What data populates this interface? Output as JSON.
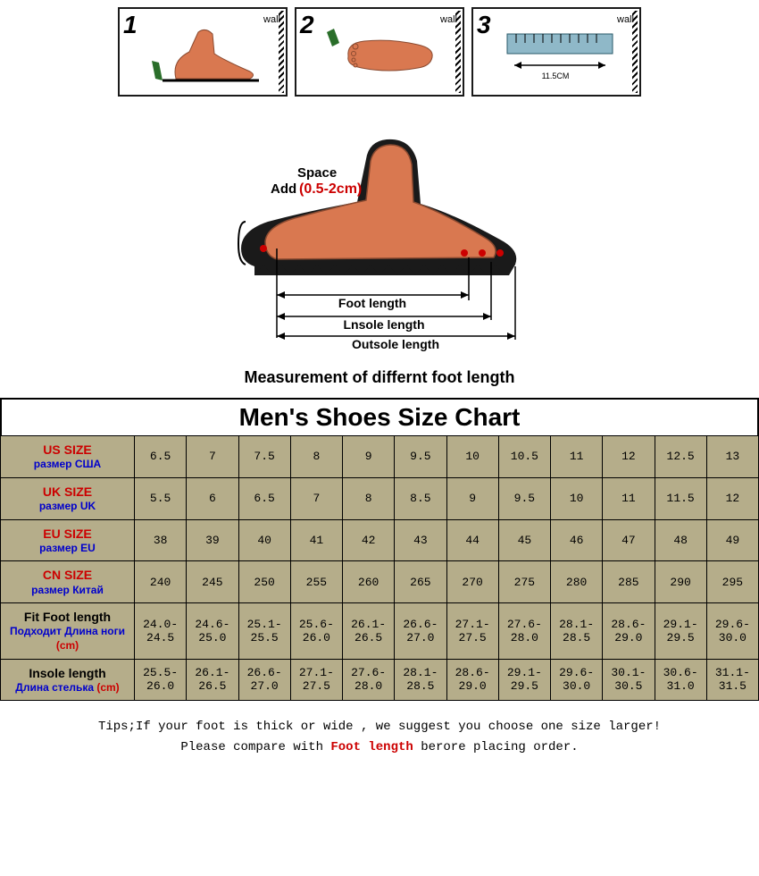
{
  "steps": [
    {
      "num": "1",
      "wall": "wall"
    },
    {
      "num": "2",
      "wall": "wall"
    },
    {
      "num": "3",
      "wall": "wall",
      "measure": "11.5CM"
    }
  ],
  "diagram": {
    "space_label": "Space",
    "add_label": "Add",
    "add_range": "(0.5-2cm)",
    "foot_length": "Foot length",
    "insole_length": "Lnsole length",
    "outsole_length": "Outsole length",
    "colors": {
      "foot": "#d97850",
      "shoe": "#1a1a1a",
      "arrow": "#1a1a1a",
      "add_text": "#cc0000"
    }
  },
  "caption": "Measurement of differnt foot length",
  "chart": {
    "title": "Men's Shoes Size Chart",
    "bg": "#b5ad8a",
    "rows": [
      {
        "en": "US SIZE",
        "ru": "размер США",
        "style": "red",
        "values": [
          "6.5",
          "7",
          "7.5",
          "8",
          "9",
          "9.5",
          "10",
          "10.5",
          "11",
          "12",
          "12.5",
          "13"
        ]
      },
      {
        "en": "UK SIZE",
        "ru": "размер UK",
        "style": "red",
        "values": [
          "5.5",
          "6",
          "6.5",
          "7",
          "8",
          "8.5",
          "9",
          "9.5",
          "10",
          "11",
          "11.5",
          "12"
        ]
      },
      {
        "en": "EU SIZE",
        "ru": "размер EU",
        "style": "red",
        "values": [
          "38",
          "39",
          "40",
          "41",
          "42",
          "43",
          "44",
          "45",
          "46",
          "47",
          "48",
          "49"
        ]
      },
      {
        "en": "CN SIZE",
        "ru": "размер Китай",
        "style": "red",
        "values": [
          "240",
          "245",
          "250",
          "255",
          "260",
          "265",
          "270",
          "275",
          "280",
          "285",
          "290",
          "295"
        ]
      },
      {
        "en": "Fit Foot length",
        "ru": "Подходит Длина ноги",
        "unit": "(cm)",
        "style": "alt",
        "values": [
          "24.0-24.5",
          "24.6-25.0",
          "25.1-25.5",
          "25.6-26.0",
          "26.1-26.5",
          "26.6-27.0",
          "27.1-27.5",
          "27.6-28.0",
          "28.1-28.5",
          "28.6-29.0",
          "29.1-29.5",
          "29.6-30.0"
        ]
      },
      {
        "en": "Insole length",
        "ru": "Длина стелька",
        "unit": "(cm)",
        "style": "alt",
        "values": [
          "25.5-26.0",
          "26.1-26.5",
          "26.6-27.0",
          "27.1-27.5",
          "27.6-28.0",
          "28.1-28.5",
          "28.6-29.0",
          "29.1-29.5",
          "29.6-30.0",
          "30.1-30.5",
          "30.6-31.0",
          "31.1-31.5"
        ]
      }
    ]
  },
  "tips": {
    "line1a": "Tips;If your foot is thick or wide , we suggest you choose one size larger!",
    "line2a": "Please compare with ",
    "line2b": "Foot length",
    "line2c": " berore placing order."
  }
}
